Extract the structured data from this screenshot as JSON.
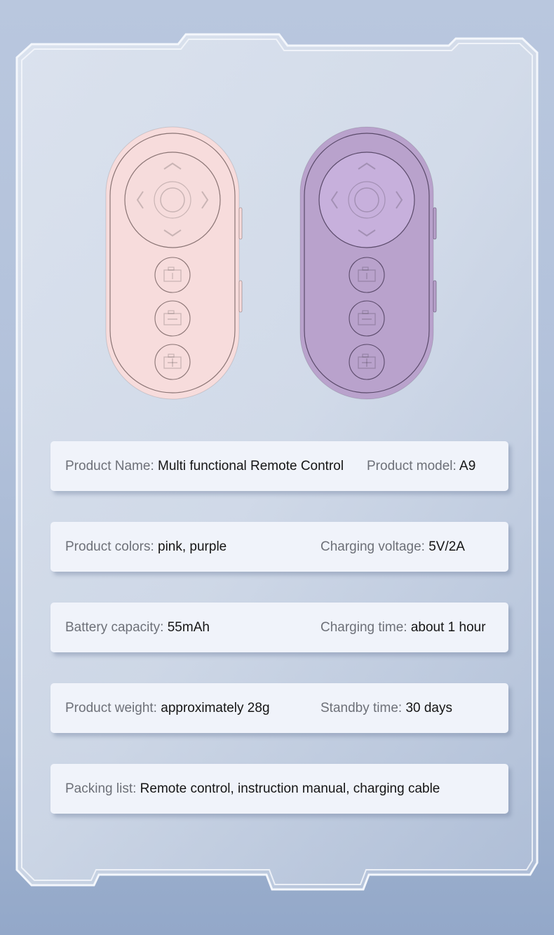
{
  "products": [
    {
      "color_name": "pink",
      "body_color": "#f7dcdc",
      "pad_color": "#f6dcdc",
      "line_color": "#8a7474"
    },
    {
      "color_name": "purple",
      "body_color": "#b9a2cc",
      "pad_color": "#c7b0dc",
      "line_color": "#5a4a6a"
    }
  ],
  "buttons": [
    "dpad",
    "shutter-1",
    "minus",
    "plus"
  ],
  "specs": [
    [
      {
        "label": "Product Name: ",
        "value": "Multi functional Remote Control"
      },
      {
        "label": "Product model: ",
        "value": "A9"
      }
    ],
    [
      {
        "label": "Product colors: ",
        "value": "pink, purple"
      },
      {
        "label": "Charging voltage: ",
        "value": "5V/2A"
      }
    ],
    [
      {
        "label": "Battery capacity: ",
        "value": "55mAh"
      },
      {
        "label": "Charging time: ",
        "value": "about 1 hour"
      }
    ],
    [
      {
        "label": "Product weight: ",
        "value": "approximately 28g"
      },
      {
        "label": "Standby time: ",
        "value": "30 days"
      }
    ],
    [
      {
        "label": "Packing list: ",
        "value": "Remote control, instruction manual, charging cable"
      }
    ]
  ]
}
